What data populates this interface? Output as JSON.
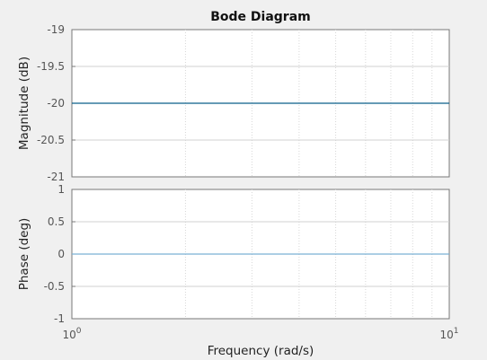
{
  "chart_data": {
    "type": "line",
    "title": "Bode Diagram",
    "xlabel": "Frequency  (rad/s)",
    "xscale": "log",
    "xlim": [
      1,
      10
    ],
    "x_ticks": [
      {
        "base": "10",
        "exp": "0"
      },
      {
        "base": "10",
        "exp": "1"
      }
    ],
    "grid": true,
    "colors": {
      "curve": "#0b5f8a",
      "phase_curve": "#7ab0d4"
    },
    "panels": [
      {
        "ylabel": "Magnitude (dB)",
        "ylim": [
          -21,
          -19
        ],
        "yticks": [
          "-19",
          "-19.5",
          "-20",
          "-20.5",
          "-21"
        ],
        "ytick_values": [
          -19,
          -19.5,
          -20,
          -20.5,
          -21
        ],
        "series": [
          {
            "x": [
              1,
              10
            ],
            "y": [
              -20,
              -20
            ]
          }
        ]
      },
      {
        "ylabel": "Phase (deg)",
        "ylim": [
          -1,
          1
        ],
        "yticks": [
          "1",
          "0.5",
          "0",
          "-0.5",
          "-1"
        ],
        "ytick_values": [
          1,
          0.5,
          0,
          -0.5,
          -1
        ],
        "series": [
          {
            "x": [
              1,
              10
            ],
            "y": [
              0,
              0
            ]
          }
        ]
      }
    ]
  }
}
